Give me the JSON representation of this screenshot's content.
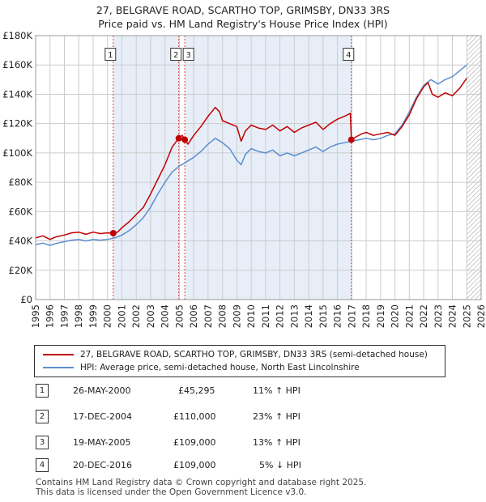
{
  "title_line1": "27, BELGRAVE ROAD, SCARTHO TOP, GRIMSBY, DN33 3RS",
  "title_line2": "Price paid vs. HM Land Registry's House Price Index (HPI)",
  "colors": {
    "property": "#c00000",
    "hpi": "#5b8fd0",
    "shade": "#e8eef8",
    "grid": "#cccccc",
    "marker_line": "#d04040"
  },
  "chart_data": {
    "type": "line",
    "xlim": [
      1995,
      2026
    ],
    "ylim": [
      0,
      180000
    ],
    "yticks": [
      {
        "v": 0,
        "label": "£0"
      },
      {
        "v": 20000,
        "label": "£20K"
      },
      {
        "v": 40000,
        "label": "£40K"
      },
      {
        "v": 60000,
        "label": "£60K"
      },
      {
        "v": 80000,
        "label": "£80K"
      },
      {
        "v": 100000,
        "label": "£100K"
      },
      {
        "v": 120000,
        "label": "£120K"
      },
      {
        "v": 140000,
        "label": "£140K"
      },
      {
        "v": 160000,
        "label": "£160K"
      },
      {
        "v": 180000,
        "label": "£180K"
      }
    ],
    "xticks": [
      "1995",
      "1996",
      "1997",
      "1998",
      "1999",
      "2000",
      "2001",
      "2002",
      "2003",
      "2004",
      "2005",
      "2006",
      "2007",
      "2008",
      "2009",
      "2010",
      "2011",
      "2012",
      "2013",
      "2014",
      "2015",
      "2016",
      "2017",
      "2018",
      "2019",
      "2020",
      "2021",
      "2022",
      "2023",
      "2024",
      "2025",
      "2026"
    ],
    "shaded_ranges": [
      [
        2000.4,
        2004.96
      ],
      [
        2005.38,
        2016.97
      ]
    ],
    "hatch_from": 2025.0,
    "series": [
      {
        "name": "27, BELGRAVE ROAD, SCARTHO TOP, GRIMSBY, DN33 3RS (semi-detached house)",
        "color_key": "property",
        "x": [
          1995.0,
          1995.5,
          1996.0,
          1996.5,
          1997.0,
          1997.5,
          1998.0,
          1998.5,
          1999.0,
          1999.5,
          2000.0,
          2000.4,
          2000.7,
          2001.0,
          2001.5,
          2002.0,
          2002.5,
          2003.0,
          2003.5,
          2004.0,
          2004.5,
          2004.96,
          2005.2,
          2005.38,
          2005.6,
          2006.0,
          2006.5,
          2007.0,
          2007.5,
          2007.8,
          2008.0,
          2008.5,
          2009.0,
          2009.3,
          2009.6,
          2010.0,
          2010.5,
          2011.0,
          2011.5,
          2012.0,
          2012.5,
          2013.0,
          2013.5,
          2014.0,
          2014.5,
          2015.0,
          2015.5,
          2016.0,
          2016.5,
          2016.9,
          2016.97,
          2017.3,
          2017.7,
          2018.0,
          2018.5,
          2019.0,
          2019.5,
          2020.0,
          2020.5,
          2021.0,
          2021.5,
          2022.0,
          2022.3,
          2022.6,
          2023.0,
          2023.5,
          2024.0,
          2024.5,
          2025.0
        ],
        "y": [
          42000,
          43500,
          41000,
          43000,
          44000,
          45500,
          46000,
          44500,
          46000,
          45000,
          45500,
          45295,
          46000,
          49000,
          53000,
          58000,
          63000,
          72000,
          82000,
          92000,
          104000,
          110000,
          112000,
          109000,
          106000,
          112000,
          118000,
          125000,
          131000,
          128000,
          122000,
          120000,
          118000,
          108000,
          115000,
          119000,
          117000,
          116000,
          119000,
          115000,
          118000,
          114000,
          117000,
          119000,
          121000,
          116000,
          120000,
          123000,
          125000,
          127000,
          109000,
          111000,
          113000,
          114000,
          112000,
          113000,
          114000,
          112000,
          118000,
          126000,
          137000,
          145000,
          148000,
          140000,
          138000,
          141000,
          139000,
          144000,
          151000
        ]
      },
      {
        "name": "HPI: Average price, semi-detached house, North East Lincolnshire",
        "color_key": "hpi",
        "x": [
          1995.0,
          1995.5,
          1996.0,
          1996.5,
          1997.0,
          1997.5,
          1998.0,
          1998.5,
          1999.0,
          1999.5,
          2000.0,
          2000.5,
          2001.0,
          2001.5,
          2002.0,
          2002.5,
          2003.0,
          2003.5,
          2004.0,
          2004.5,
          2005.0,
          2005.5,
          2006.0,
          2006.5,
          2007.0,
          2007.5,
          2008.0,
          2008.5,
          2009.0,
          2009.3,
          2009.6,
          2010.0,
          2010.5,
          2011.0,
          2011.5,
          2012.0,
          2012.5,
          2013.0,
          2013.5,
          2014.0,
          2014.5,
          2015.0,
          2015.5,
          2016.0,
          2016.5,
          2017.0,
          2017.5,
          2018.0,
          2018.5,
          2019.0,
          2019.5,
          2020.0,
          2020.5,
          2021.0,
          2021.5,
          2022.0,
          2022.5,
          2023.0,
          2023.5,
          2024.0,
          2024.5,
          2025.0
        ],
        "y": [
          37500,
          38500,
          37000,
          38500,
          39500,
          40500,
          41000,
          40000,
          41000,
          40500,
          41000,
          42000,
          44000,
          47000,
          51000,
          56000,
          63000,
          72000,
          80000,
          87000,
          91000,
          94000,
          97000,
          101000,
          106000,
          110000,
          107000,
          103000,
          95000,
          92000,
          99000,
          103000,
          101000,
          100000,
          102000,
          98000,
          100000,
          98000,
          100000,
          102000,
          104000,
          101000,
          104000,
          106000,
          107000,
          108000,
          109000,
          110000,
          109000,
          110000,
          112000,
          113000,
          119000,
          128000,
          138000,
          146000,
          150000,
          147000,
          150000,
          152000,
          156000,
          160000
        ]
      }
    ],
    "markers": [
      {
        "label": "1",
        "x": 2000.4,
        "y": 45295,
        "box_y": 167000
      },
      {
        "label": "2",
        "x": 2004.96,
        "y": 110000,
        "box_y": 167000
      },
      {
        "label": "3",
        "x": 2005.38,
        "y": 109000,
        "box_y": 167000
      },
      {
        "label": "4",
        "x": 2016.97,
        "y": 109000,
        "box_y": 167000
      }
    ]
  },
  "legend": [
    {
      "label": "27, BELGRAVE ROAD, SCARTHO TOP, GRIMSBY, DN33 3RS (semi-detached house)"
    },
    {
      "label": "HPI: Average price, semi-detached house, North East Lincolnshire"
    }
  ],
  "sales": [
    {
      "num": "1",
      "date": "26-MAY-2000",
      "price": "£45,295",
      "hpi": "11% ↑ HPI"
    },
    {
      "num": "2",
      "date": "17-DEC-2004",
      "price": "£110,000",
      "hpi": "23% ↑ HPI"
    },
    {
      "num": "3",
      "date": "19-MAY-2005",
      "price": "£109,000",
      "hpi": "13% ↑ HPI"
    },
    {
      "num": "4",
      "date": "20-DEC-2016",
      "price": "£109,000",
      "hpi": "5% ↓ HPI"
    }
  ],
  "footer_line1": "Contains HM Land Registry data © Crown copyright and database right 2025.",
  "footer_line2": "This data is licensed under the Open Government Licence v3.0."
}
